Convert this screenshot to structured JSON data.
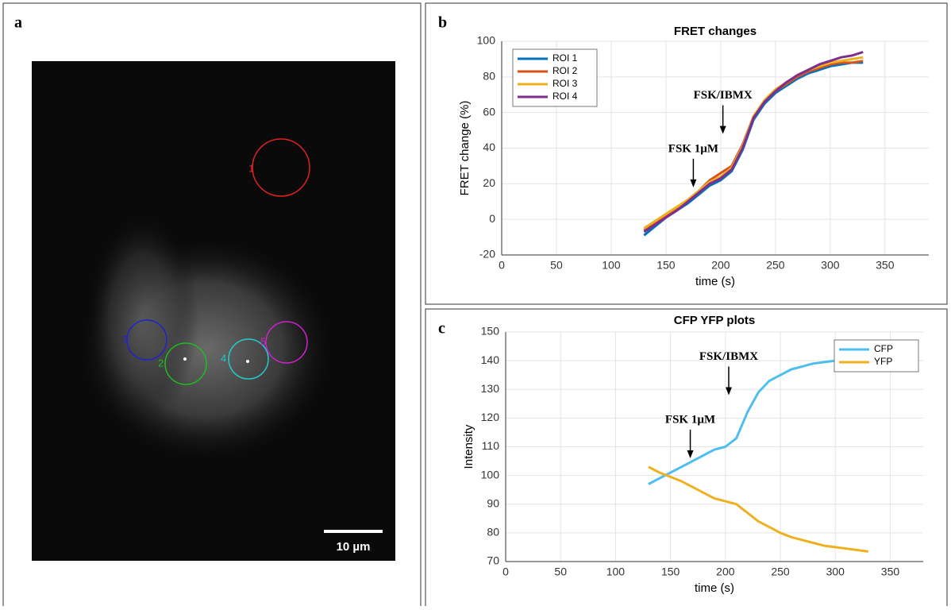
{
  "panels": {
    "a": "a",
    "b": "b",
    "c": "c"
  },
  "image": {
    "roi_labels": [
      "1",
      "3",
      "2",
      "4",
      "5"
    ],
    "scale_bar": "10 µm"
  },
  "chart_data": [
    {
      "type": "line",
      "title": "FRET changes",
      "x_label": "time (s)",
      "y_label": "FRET change (%)",
      "x": [
        130,
        140,
        150,
        160,
        170,
        180,
        190,
        200,
        210,
        220,
        230,
        240,
        250,
        260,
        270,
        280,
        290,
        300,
        310,
        320,
        330
      ],
      "series": [
        {
          "name": "ROI 1",
          "color": "#0072bd",
          "values": [
            -9,
            -4,
            1,
            5,
            9,
            14,
            19,
            22,
            27,
            39,
            56,
            65,
            71,
            75,
            79,
            82,
            84,
            86,
            87,
            88,
            88
          ]
        },
        {
          "name": "ROI 2",
          "color": "#d95319",
          "values": [
            -6,
            -2,
            2,
            6,
            11,
            16,
            22,
            26,
            30,
            42,
            58,
            66,
            72,
            76,
            80,
            83,
            85,
            87,
            88,
            88,
            89
          ]
        },
        {
          "name": "ROI 3",
          "color": "#edb120",
          "values": [
            -5,
            -1,
            3,
            7,
            11,
            16,
            21,
            24,
            29,
            41,
            58,
            67,
            73,
            77,
            81,
            84,
            86,
            88,
            89,
            90,
            91
          ]
        },
        {
          "name": "ROI 4",
          "color": "#7e2f8e",
          "values": [
            -7,
            -3,
            1,
            5,
            10,
            15,
            20,
            23,
            28,
            40,
            57,
            66,
            72,
            77,
            81,
            84,
            87,
            89,
            91,
            92,
            94
          ]
        }
      ],
      "xlim": [
        0,
        390
      ],
      "ylim": [
        -20,
        100
      ],
      "xticks": [
        0,
        50,
        100,
        150,
        200,
        250,
        300,
        350
      ],
      "yticks": [
        -20,
        0,
        20,
        40,
        60,
        80,
        100
      ],
      "grid": true,
      "legend": "top-left",
      "annotations": [
        {
          "text": "FSK 1µM",
          "x": 175,
          "y": 18
        },
        {
          "text": "FSK/IBMX",
          "x": 202,
          "y": 48
        }
      ]
    },
    {
      "type": "line",
      "title": "CFP YFP plots",
      "x_label": "time (s)",
      "y_label": "Intensity",
      "x": [
        130,
        140,
        150,
        160,
        170,
        180,
        190,
        200,
        210,
        220,
        230,
        240,
        250,
        260,
        270,
        280,
        290,
        300,
        310,
        320,
        330
      ],
      "series": [
        {
          "name": "CFP",
          "color": "#4dbeee",
          "values": [
            97,
            99,
            101,
            103,
            105,
            107,
            109,
            110,
            113,
            122,
            129,
            133,
            135,
            137,
            138,
            139,
            139.5,
            140,
            140,
            null,
            null
          ]
        },
        {
          "name": "YFP",
          "color": "#edb120",
          "values": [
            103,
            101,
            99.5,
            98,
            96,
            94,
            92,
            91,
            90,
            87,
            84,
            82,
            80,
            78.5,
            77.5,
            76.5,
            75.5,
            75,
            74.5,
            74,
            73.5
          ]
        }
      ],
      "xlim": [
        0,
        380
      ],
      "ylim": [
        70,
        150
      ],
      "xticks": [
        0,
        50,
        100,
        150,
        200,
        250,
        300,
        350
      ],
      "yticks": [
        70,
        80,
        90,
        100,
        110,
        120,
        130,
        140,
        150
      ],
      "grid": true,
      "legend": "top-right",
      "annotations": [
        {
          "text": "FSK 1µM",
          "x": 168,
          "y": 106
        },
        {
          "text": "FSK/IBMX",
          "x": 203,
          "y": 128
        }
      ]
    }
  ]
}
